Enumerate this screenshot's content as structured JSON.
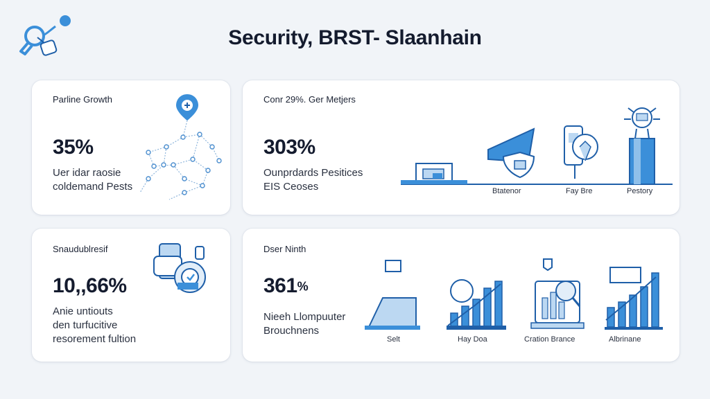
{
  "header": {
    "title": "Security, BRST- Slaanhain"
  },
  "brand": {
    "logo_icon": "security-key-icon",
    "accent": "#3b8fd9",
    "accent_light": "#bcd8f2"
  },
  "cards": [
    {
      "label": "Parline Growth",
      "value": "35%",
      "description": [
        "Uer idar raosie",
        "coldemand Pests"
      ],
      "illustration": "network-map-icon"
    },
    {
      "label": "Conr 29%. Ger Metjers",
      "value": "303%",
      "description": [
        "Ounprdards Pesitices",
        "EIS Ceoses"
      ],
      "captions": [
        "Btatenor",
        "Fay Bre",
        "Pestory"
      ]
    },
    {
      "label": "Snaudublresif",
      "value": "10,,66%",
      "description": [
        "Anie untiouts",
        "den turfucitive",
        "resorement fultion"
      ],
      "illustration": "device-security-icon"
    },
    {
      "label": "Dser Ninth",
      "value": "361",
      "value_suffix": "%",
      "description": [
        "Nieeh Llompuuter",
        "Brouchnens"
      ],
      "captions": [
        "Selt",
        "Hay Doa",
        "Cration Brance",
        "Albrinane"
      ]
    }
  ]
}
